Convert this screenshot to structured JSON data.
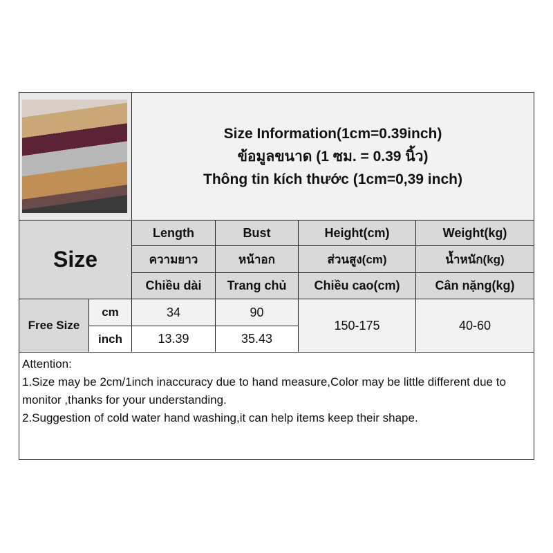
{
  "title": {
    "en": "Size Information(1cm=0.39inch)",
    "th": "ข้อมูลขนาด (1 ซม. = 0.39 นิ้ว)",
    "vi": "Thông tin kích thước (1cm=0,39 inch)"
  },
  "size_label": "Size",
  "columns": [
    {
      "en": "Length",
      "th": "ความยาว",
      "vi": "Chiều dài"
    },
    {
      "en": "Bust",
      "th": "หน้าอก",
      "vi": "Trang chủ"
    },
    {
      "en": "Height(cm)",
      "th": "ส่วนสูง(cm)",
      "vi": "Chiều cao(cm)"
    },
    {
      "en": "Weight(kg)",
      "th": "น้ำหนัก(kg)",
      "vi": "Cân nặng(kg)"
    }
  ],
  "row": {
    "size": "Free Size",
    "units": [
      "cm",
      "inch"
    ],
    "length": [
      "34",
      "13.39"
    ],
    "bust": [
      "90",
      "35.43"
    ],
    "height": "150-175",
    "weight": "40-60"
  },
  "notes": [
    "Attention:",
    "1.Size may be 2cm/1inch inaccuracy due to hand measure,Color may be little different due to monitor ,thanks for your understanding.",
    "2.Suggestion of cold water hand washing,it can help items keep their shape."
  ]
}
